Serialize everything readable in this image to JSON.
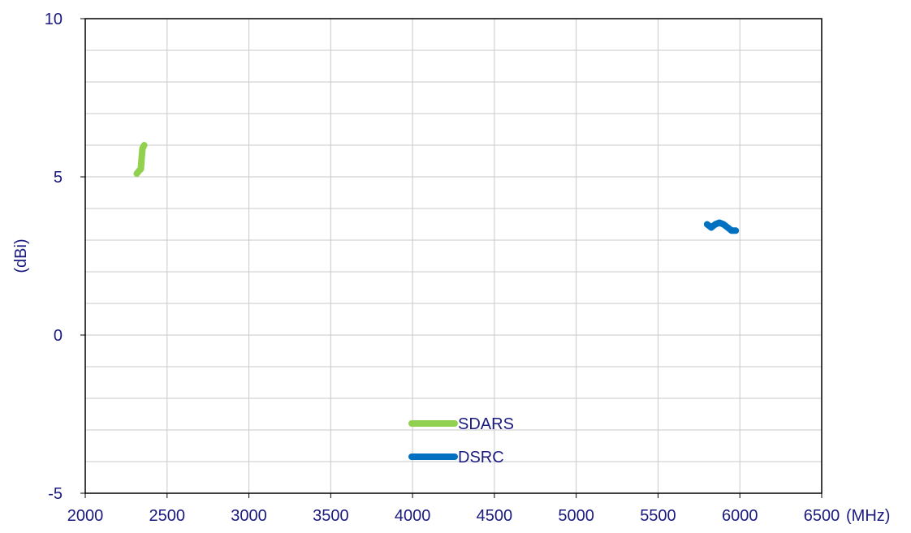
{
  "chart_data": {
    "type": "line",
    "xlabel": "(MHz)",
    "ylabel": "(dBi)",
    "xlim": [
      2000,
      6500
    ],
    "ylim": [
      -5,
      10
    ],
    "x_ticks": [
      2000,
      2500,
      3000,
      3500,
      4000,
      4500,
      5000,
      5500,
      6000,
      6500
    ],
    "y_ticks": [
      -5,
      0,
      5,
      10
    ],
    "x_minor_step": 500,
    "y_minor_step": 1,
    "grid": true,
    "legend_position": "bottom-center",
    "series": [
      {
        "name": "SDARS",
        "color": "#92d050",
        "x": [
          2315,
          2330,
          2340,
          2345,
          2350,
          2360
        ],
        "y": [
          5.1,
          5.2,
          5.25,
          5.6,
          5.9,
          6.0
        ]
      },
      {
        "name": "DSRC",
        "color": "#0070c0",
        "x": [
          5800,
          5825,
          5850,
          5875,
          5900,
          5925,
          5950,
          5975
        ],
        "y": [
          3.5,
          3.4,
          3.5,
          3.55,
          3.5,
          3.4,
          3.3,
          3.3
        ]
      }
    ]
  }
}
